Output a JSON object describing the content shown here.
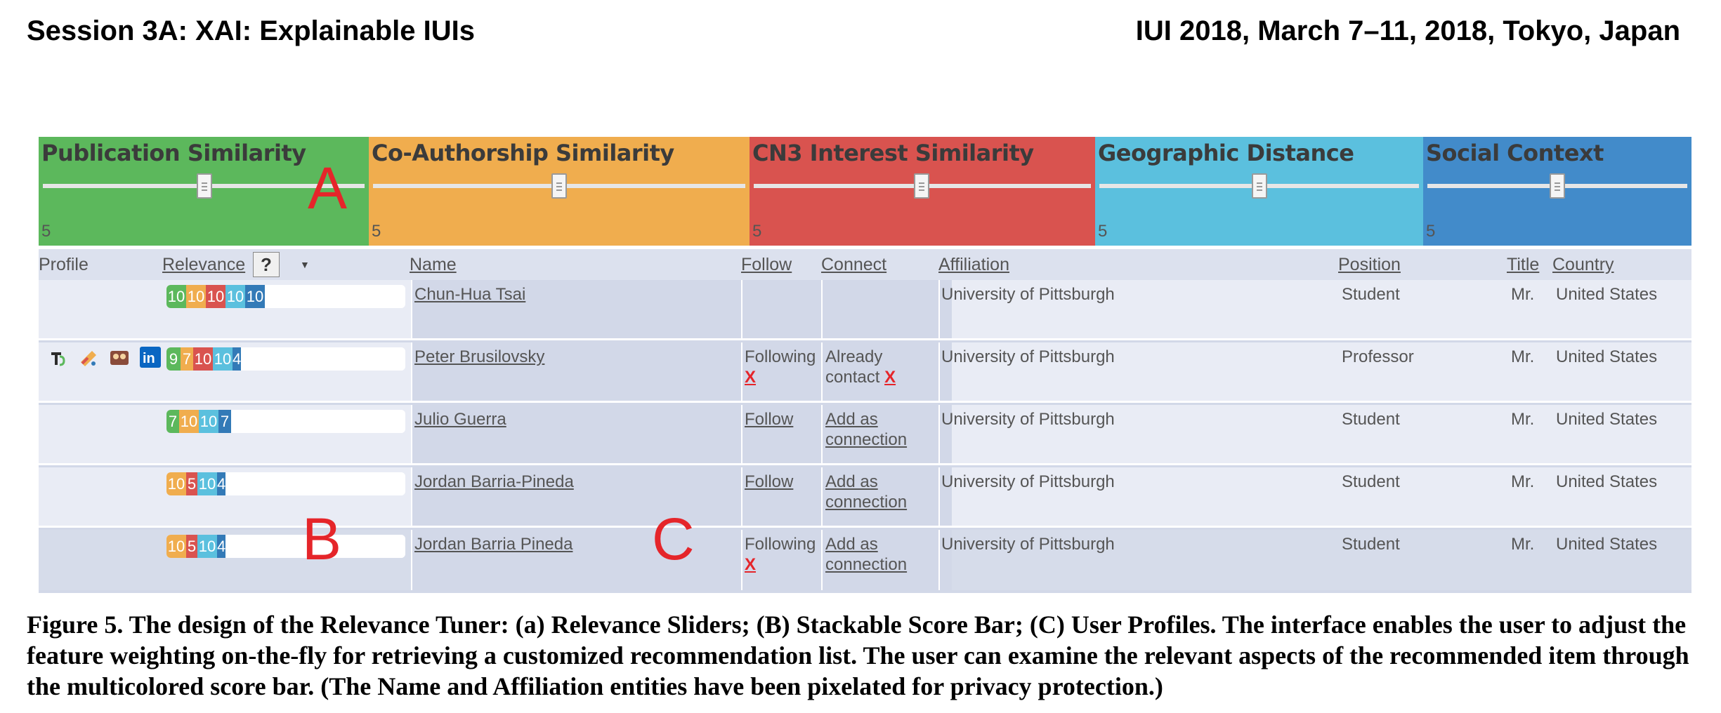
{
  "header": {
    "left": "Session 3A: XAI: Explainable IUIs",
    "right": "IUI 2018, March 7–11, 2018, Tokyo, Japan"
  },
  "sliders": [
    {
      "title": "Publication Similarity",
      "value": "5",
      "color": "#5cb85c"
    },
    {
      "title": "Co-Authorship Similarity",
      "value": "5",
      "color": "#f0ad4e"
    },
    {
      "title": "CN3 Interest Similarity",
      "value": "5",
      "color": "#d9534f"
    },
    {
      "title": "Geographic Distance",
      "value": "5",
      "color": "#5bc0de"
    },
    {
      "title": "Social Context",
      "value": "5",
      "color": "#428bca"
    }
  ],
  "annotations": {
    "a": "A",
    "b": "B",
    "c": "C"
  },
  "table": {
    "headers": {
      "profile": "Profile",
      "relevance": "Relevance",
      "help": "?",
      "name": "Name",
      "follow": "Follow",
      "connect": "Connect",
      "affiliation": "Affiliation",
      "position": "Position",
      "title": "Title",
      "country": "Country"
    },
    "rows": [
      {
        "scores": [
          "10",
          "10",
          "10",
          "10",
          "10"
        ],
        "name": "Chun-Hua Tsai",
        "follow_line1": "",
        "follow_line2": "",
        "connect_line1": "",
        "connect_line2": "",
        "affiliation": "University of Pittsburgh",
        "position": "Student",
        "title": "Mr.",
        "country": "United States"
      },
      {
        "scores": [
          "9",
          "7",
          "10",
          "10",
          "4"
        ],
        "name": "Peter Brusilovsky",
        "follow_line1": "Following",
        "follow_line2": "X",
        "connect_line1": "Already",
        "connect_line2": "contact",
        "affiliation": "University of Pittsburgh",
        "position": "Professor",
        "title": "Mr.",
        "country": "United States"
      },
      {
        "scores": [
          "7",
          "10",
          "10",
          "7"
        ],
        "name": "Julio Guerra",
        "follow_line1": "Follow",
        "follow_line2": "",
        "connect_line1": "Add as",
        "connect_line2": "connection",
        "affiliation": "University of Pittsburgh",
        "position": "Student",
        "title": "Mr.",
        "country": "United States"
      },
      {
        "scores": [
          "10",
          "5",
          "10",
          "4"
        ],
        "name": "Jordan Barria-Pineda",
        "follow_line1": "Follow",
        "follow_line2": "",
        "connect_line1": "Add as",
        "connect_line2": "connection",
        "affiliation": "University of Pittsburgh",
        "position": "Student",
        "title": "Mr.",
        "country": "United States"
      },
      {
        "scores": [
          "10",
          "5",
          "10",
          "4"
        ],
        "name": "Jordan Barria Pineda",
        "follow_line1": "Following",
        "follow_line2": "X",
        "connect_line1": "Add as",
        "connect_line2": "connection",
        "affiliation": "University of Pittsburgh",
        "position": "Student",
        "title": "Mr.",
        "country": "United States"
      }
    ]
  },
  "caption": "Figure 5. The design of the Relevance Tuner: (a) Relevance Sliders; (B) Stackable Score Bar; (C) User Profiles. The interface enables the user to adjust the feature weighting on-the-fly for retrieving a customized recommendation list. The user can examine the relevant aspects of the recommended item through the multicolored score bar. (The Name and Affiliation entities have been pixelated for privacy protection.)"
}
